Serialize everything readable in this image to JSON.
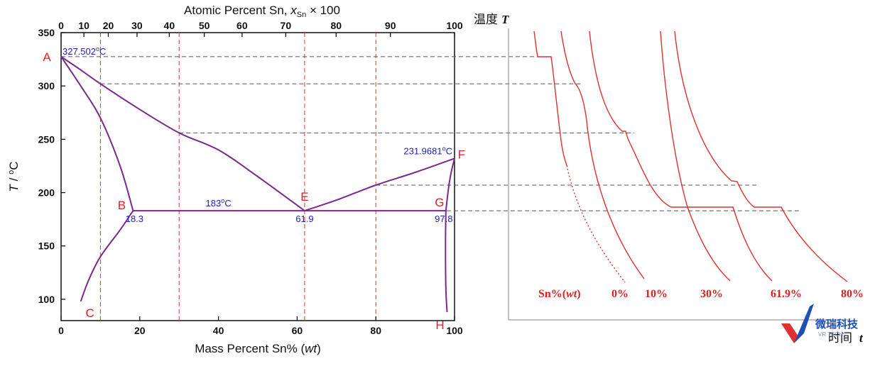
{
  "chart_data": [
    {
      "type": "line",
      "title": "",
      "xlabel": "Mass Percent Sn% (wt)",
      "xlabel_main": "Mass Percent Sn% (",
      "xlabel_italic": "wt",
      "xlabel_close": ")",
      "ylabel": "T / °C",
      "ylabel_italic": "T",
      "ylabel_rest": " / ",
      "ylabel_sup": "o",
      "ylabel_unit": "C",
      "x2label": "Atomic Percent Sn, xSn × 100",
      "x2label_main": "Atomic Percent Sn, ",
      "x2label_var": "x",
      "x2label_sub": "Sn",
      "x2label_tail": " × 100",
      "xlim": [
        0,
        100
      ],
      "ylim": [
        80,
        350
      ],
      "x_ticks": [
        "0",
        "20",
        "40",
        "60",
        "80",
        "100"
      ],
      "y_ticks": [
        "100",
        "150",
        "200",
        "250",
        "300",
        "350"
      ],
      "top_ticks": [
        {
          "mass": 0,
          "label": "0"
        },
        {
          "mass": 5.8,
          "label": "10"
        },
        {
          "mass": 12.0,
          "label": "20"
        },
        {
          "mass": 19.3,
          "label": "30"
        },
        {
          "mass": 27.5,
          "label": "40"
        },
        {
          "mass": 36.4,
          "label": "50"
        },
        {
          "mass": 46.0,
          "label": "60"
        },
        {
          "mass": 57.1,
          "label": "70"
        },
        {
          "mass": 69.9,
          "label": "80"
        },
        {
          "mass": 83.7,
          "label": "90"
        },
        {
          "mass": 100,
          "label": "100"
        }
      ],
      "series": [
        {
          "kind": "liquidus-Pb",
          "x": [
            0,
            5,
            10,
            20,
            30,
            40,
            50,
            61.9
          ],
          "y": [
            327.5,
            315,
            302,
            278,
            256,
            240,
            215,
            183
          ]
        },
        {
          "kind": "liquidus-Sn",
          "x": [
            61.9,
            70,
            80,
            90,
            100
          ],
          "y": [
            183,
            193,
            207,
            219,
            232
          ]
        },
        {
          "kind": "solidus-Pb",
          "x": [
            0,
            5,
            10,
            15,
            18.3
          ],
          "y": [
            327.5,
            300,
            270,
            225,
            183
          ]
        },
        {
          "kind": "solvus-Pb",
          "x": [
            18.3,
            15,
            10,
            7,
            5
          ],
          "y": [
            183,
            165,
            140,
            118,
            98
          ]
        },
        {
          "kind": "solidus-Sn",
          "x": [
            97.8,
            98.5,
            99.2,
            100
          ],
          "y": [
            183,
            205,
            220,
            232
          ]
        },
        {
          "kind": "solvus-Sn",
          "x": [
            97.8,
            97.7,
            97.8,
            98.1
          ],
          "y": [
            183,
            150,
            110,
            88
          ]
        },
        {
          "kind": "eutectic",
          "x": [
            18.3,
            97.8
          ],
          "y": [
            183,
            183
          ]
        }
      ],
      "points": [
        {
          "label": "A",
          "x": 0,
          "y": 327.5
        },
        {
          "label": "B",
          "x": 18.3,
          "y": 183
        },
        {
          "label": "C",
          "x": 5,
          "y": 98
        },
        {
          "label": "E",
          "x": 61.9,
          "y": 183
        },
        {
          "label": "F",
          "x": 100,
          "y": 232
        },
        {
          "label": "G",
          "x": 97.8,
          "y": 183
        },
        {
          "label": "H",
          "x": 98.1,
          "y": 88
        }
      ],
      "composition_lines": [
        10,
        30,
        61.9,
        80
      ],
      "annotations": [
        {
          "text": "327.502",
          "sup": "o",
          "unit": "C",
          "x": 0,
          "y": 327.5
        },
        {
          "text": "231.9681",
          "sup": "o",
          "unit": "C",
          "x": 100,
          "y": 232
        },
        {
          "text": "183",
          "sup": "o",
          "unit": "C",
          "x": 40,
          "y": 183
        },
        {
          "text": "18.3",
          "x": 18.3,
          "y": 183
        },
        {
          "text": "61.9",
          "x": 61.9,
          "y": 183
        },
        {
          "text": "97.8",
          "x": 97.8,
          "y": 183
        }
      ],
      "reference_temperatures": [
        327.5,
        302,
        256,
        207,
        183
      ]
    },
    {
      "type": "line",
      "title": "",
      "xlabel": "时间 t",
      "xlabel_cn": "时间",
      "xlabel_var": "t",
      "ylabel": "温度 T",
      "ylabel_cn": "温度",
      "ylabel_var": "T",
      "legend_label": "Sn%(wt)",
      "legend_main": "Sn%(",
      "legend_italic": "wt",
      "legend_close": ")",
      "series": [
        {
          "name": "0%",
          "arrest_temperatures": [
            327.5
          ]
        },
        {
          "name": "10%",
          "arrest_temperatures": [
            302
          ]
        },
        {
          "name": "30%",
          "arrest_temperatures": [
            256,
            183
          ]
        },
        {
          "name": "61.9%",
          "arrest_temperatures": [
            183
          ]
        },
        {
          "name": "80%",
          "arrest_temperatures": [
            207,
            183
          ]
        }
      ]
    }
  ],
  "watermark": {
    "text": "微瑞科技",
    "sub": "VR TECH"
  }
}
